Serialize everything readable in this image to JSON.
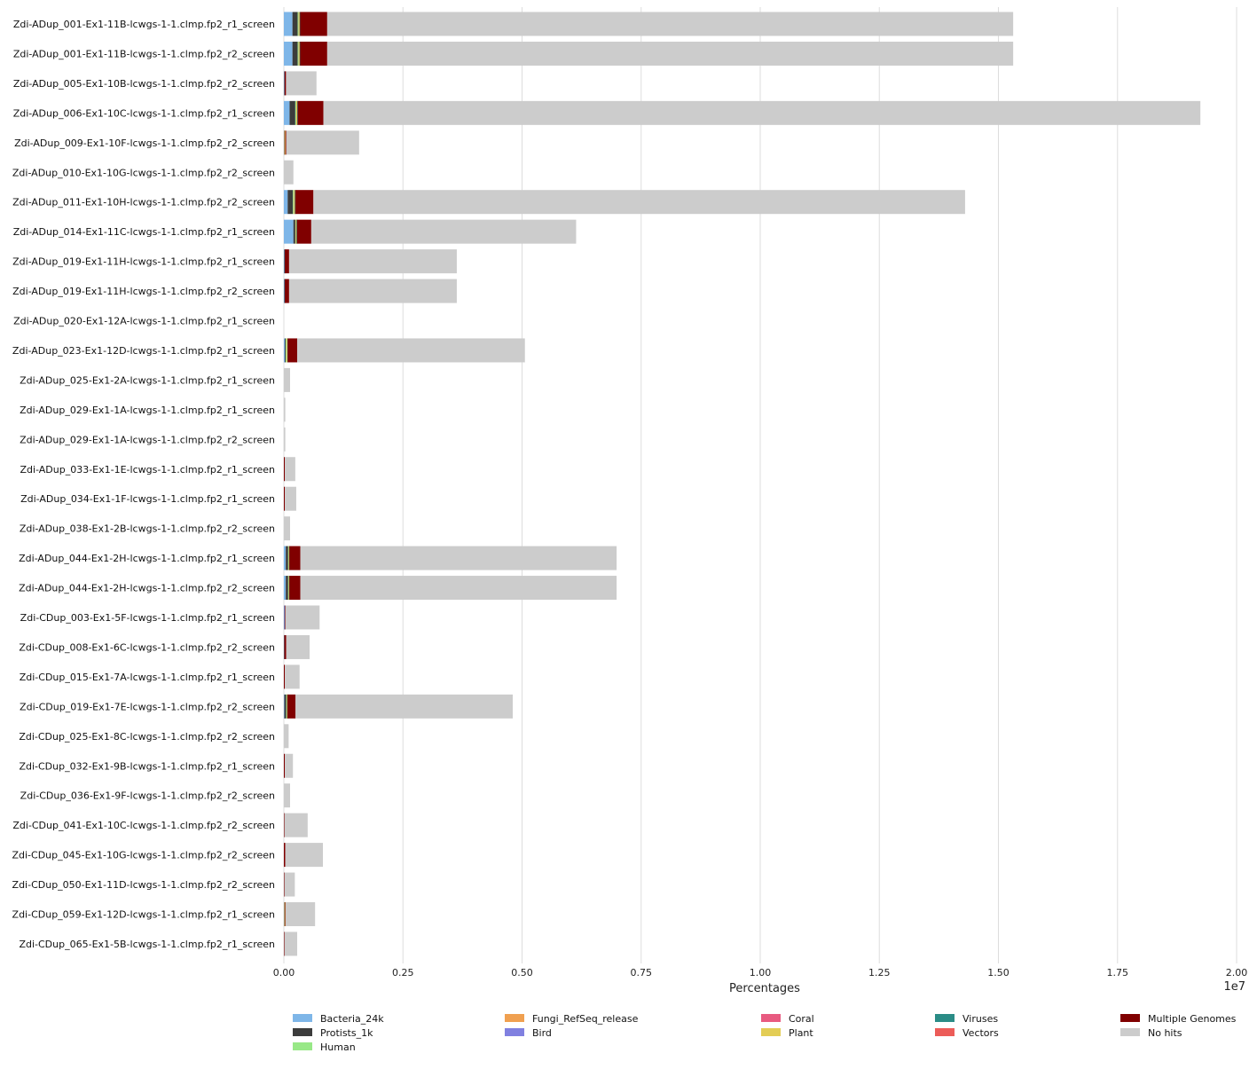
{
  "chart_data": {
    "type": "bar",
    "orientation": "horizontal",
    "stacked": true,
    "title": "",
    "xlabel": "Percentages",
    "ylabel": "",
    "x_offset_label": "1e7",
    "xlim": [
      0,
      2.0
    ],
    "xticks": [
      "0.00",
      "0.25",
      "0.50",
      "0.75",
      "1.00",
      "1.25",
      "1.50",
      "1.75",
      "2.00"
    ],
    "xtick_values": [
      0,
      0.25,
      0.5,
      0.75,
      1.0,
      1.25,
      1.5,
      1.75,
      2.0
    ],
    "grid": true,
    "legend_position": "bottom",
    "categories": [
      "Zdi-ADup_001-Ex1-11B-lcwgs-1-1.clmp.fp2_r1_screen",
      "Zdi-ADup_001-Ex1-11B-lcwgs-1-1.clmp.fp2_r2_screen",
      "Zdi-ADup_005-Ex1-10B-lcwgs-1-1.clmp.fp2_r2_screen",
      "Zdi-ADup_006-Ex1-10C-lcwgs-1-1.clmp.fp2_r1_screen",
      "Zdi-ADup_009-Ex1-10F-lcwgs-1-1.clmp.fp2_r2_screen",
      "Zdi-ADup_010-Ex1-10G-lcwgs-1-1.clmp.fp2_r2_screen",
      "Zdi-ADup_011-Ex1-10H-lcwgs-1-1.clmp.fp2_r2_screen",
      "Zdi-ADup_014-Ex1-11C-lcwgs-1-1.clmp.fp2_r1_screen",
      "Zdi-ADup_019-Ex1-11H-lcwgs-1-1.clmp.fp2_r1_screen",
      "Zdi-ADup_019-Ex1-11H-lcwgs-1-1.clmp.fp2_r2_screen",
      "Zdi-ADup_020-Ex1-12A-lcwgs-1-1.clmp.fp2_r1_screen",
      "Zdi-ADup_023-Ex1-12D-lcwgs-1-1.clmp.fp2_r1_screen",
      "Zdi-ADup_025-Ex1-2A-lcwgs-1-1.clmp.fp2_r1_screen",
      "Zdi-ADup_029-Ex1-1A-lcwgs-1-1.clmp.fp2_r1_screen",
      "Zdi-ADup_029-Ex1-1A-lcwgs-1-1.clmp.fp2_r2_screen",
      "Zdi-ADup_033-Ex1-1E-lcwgs-1-1.clmp.fp2_r1_screen",
      "Zdi-ADup_034-Ex1-1F-lcwgs-1-1.clmp.fp2_r1_screen",
      "Zdi-ADup_038-Ex1-2B-lcwgs-1-1.clmp.fp2_r2_screen",
      "Zdi-ADup_044-Ex1-2H-lcwgs-1-1.clmp.fp2_r1_screen",
      "Zdi-ADup_044-Ex1-2H-lcwgs-1-1.clmp.fp2_r2_screen",
      "Zdi-CDup_003-Ex1-5F-lcwgs-1-1.clmp.fp2_r1_screen",
      "Zdi-CDup_008-Ex1-6C-lcwgs-1-1.clmp.fp2_r2_screen",
      "Zdi-CDup_015-Ex1-7A-lcwgs-1-1.clmp.fp2_r1_screen",
      "Zdi-CDup_019-Ex1-7E-lcwgs-1-1.clmp.fp2_r2_screen",
      "Zdi-CDup_025-Ex1-8C-lcwgs-1-1.clmp.fp2_r2_screen",
      "Zdi-CDup_032-Ex1-9B-lcwgs-1-1.clmp.fp2_r1_screen",
      "Zdi-CDup_036-Ex1-9F-lcwgs-1-1.clmp.fp2_r2_screen",
      "Zdi-CDup_041-Ex1-10C-lcwgs-1-1.clmp.fp2_r2_screen",
      "Zdi-CDup_045-Ex1-10G-lcwgs-1-1.clmp.fp2_r2_screen",
      "Zdi-CDup_050-Ex1-11D-lcwgs-1-1.clmp.fp2_r2_screen",
      "Zdi-CDup_059-Ex1-12D-lcwgs-1-1.clmp.fp2_r1_screen",
      "Zdi-CDup_065-Ex1-5B-lcwgs-1-1.clmp.fp2_r1_screen"
    ],
    "series": [
      {
        "name": "Bacteria_24k",
        "color": "#7eb6e8",
        "values": [
          0.018,
          0.018,
          0.001,
          0.012,
          0.0005,
          0,
          0.008,
          0.02,
          0.001,
          0.001,
          0,
          0.002,
          0,
          0,
          0,
          0,
          0,
          0,
          0.004,
          0.004,
          0.0005,
          0.0005,
          0,
          0.001,
          0,
          0,
          0,
          0,
          0,
          0,
          0.0005,
          0
        ]
      },
      {
        "name": "Protists_1k",
        "color": "#3c3c3c",
        "values": [
          0.011,
          0.011,
          0.0005,
          0.012,
          0.0005,
          0,
          0.011,
          0.004,
          0.001,
          0.001,
          0,
          0.002,
          0,
          0,
          0,
          0,
          0,
          0,
          0.005,
          0.005,
          0.0005,
          0.0005,
          0,
          0.004,
          0,
          0,
          0,
          0,
          0,
          0,
          0.0005,
          0
        ]
      },
      {
        "name": "Human",
        "color": "#98e887",
        "values": [
          0.002,
          0.002,
          0,
          0.002,
          0,
          0,
          0.002,
          0.001,
          0,
          0,
          0,
          0.002,
          0,
          0,
          0,
          0,
          0,
          0,
          0.001,
          0.001,
          0,
          0,
          0,
          0.001,
          0,
          0,
          0,
          0,
          0,
          0,
          0,
          0
        ]
      },
      {
        "name": "Fungi_RefSeq_release",
        "color": "#f0a050",
        "values": [
          0.001,
          0.001,
          0,
          0.001,
          0.001,
          0,
          0.001,
          0.001,
          0,
          0,
          0,
          0.0005,
          0,
          0,
          0,
          0,
          0,
          0,
          0.0005,
          0.0005,
          0,
          0,
          0,
          0.0005,
          0,
          0,
          0,
          0,
          0,
          0,
          0.0005,
          0
        ]
      },
      {
        "name": "Bird",
        "color": "#8080e0",
        "values": [
          0,
          0,
          0,
          0,
          0,
          0,
          0,
          0,
          0,
          0,
          0,
          0,
          0,
          0,
          0,
          0,
          0,
          0,
          0,
          0,
          0.001,
          0,
          0,
          0,
          0,
          0,
          0,
          0,
          0,
          0,
          0,
          0
        ]
      },
      {
        "name": "Coral",
        "color": "#e85a80",
        "values": [
          0,
          0,
          0,
          0,
          0,
          0,
          0,
          0,
          0,
          0,
          0,
          0,
          0,
          0,
          0,
          0,
          0,
          0,
          0,
          0,
          0,
          0,
          0,
          0,
          0,
          0,
          0,
          0,
          0,
          0,
          0,
          0
        ]
      },
      {
        "name": "Plant",
        "color": "#e3cd55",
        "values": [
          0.001,
          0.001,
          0,
          0.001,
          0.001,
          0,
          0.001,
          0.0005,
          0,
          0,
          0,
          0.001,
          0,
          0,
          0,
          0,
          0,
          0,
          0.0005,
          0.0005,
          0,
          0,
          0,
          0.0005,
          0,
          0,
          0,
          0,
          0,
          0,
          0.001,
          0
        ]
      },
      {
        "name": "Viruses",
        "color": "#2a8c86",
        "values": [
          0.001,
          0.001,
          0,
          0.001,
          0,
          0,
          0.001,
          0.001,
          0,
          0,
          0,
          0.0005,
          0,
          0,
          0,
          0,
          0,
          0,
          0.0005,
          0.0005,
          0,
          0,
          0,
          0.0005,
          0,
          0,
          0,
          0,
          0,
          0,
          0,
          0
        ]
      },
      {
        "name": "Vectors",
        "color": "#ec5c58",
        "values": [
          0,
          0,
          0,
          0,
          0,
          0,
          0,
          0,
          0,
          0,
          0,
          0,
          0,
          0,
          0,
          0,
          0,
          0,
          0,
          0,
          0,
          0,
          0,
          0,
          0,
          0,
          0,
          0,
          0,
          0,
          0,
          0
        ]
      },
      {
        "name": "Multiple Genomes",
        "color": "#800000",
        "values": [
          0.057,
          0.057,
          0.003,
          0.054,
          0.002,
          0,
          0.038,
          0.03,
          0.009,
          0.009,
          0,
          0.02,
          0,
          0,
          0,
          0.002,
          0.002,
          0,
          0.023,
          0.023,
          0.001,
          0.004,
          0.002,
          0.017,
          0,
          0.002,
          0,
          0.001,
          0.003,
          0.001,
          0.001,
          0.001
        ]
      },
      {
        "name": "No hits",
        "color": "#cccccc",
        "values": [
          1.44,
          1.44,
          0.064,
          1.841,
          0.153,
          0.02,
          1.368,
          0.556,
          0.352,
          0.352,
          0,
          0.478,
          0.013,
          0.003,
          0.003,
          0.022,
          0.024,
          0.013,
          0.664,
          0.664,
          0.072,
          0.049,
          0.031,
          0.456,
          0.01,
          0.017,
          0.013,
          0.049,
          0.079,
          0.022,
          0.062,
          0.027
        ]
      }
    ]
  }
}
